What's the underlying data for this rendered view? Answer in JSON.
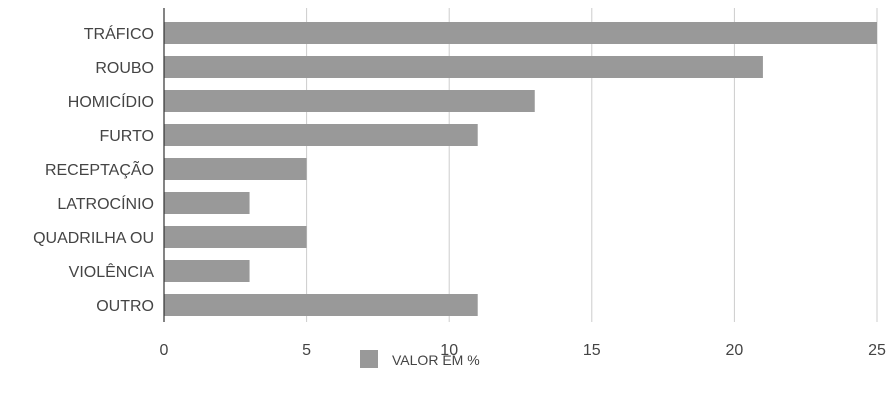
{
  "chart_data": {
    "type": "bar",
    "orientation": "horizontal",
    "categories": [
      "TRÁFICO",
      "ROUBO",
      "HOMICÍDIO",
      "FURTO",
      "RECEPTAÇÃO",
      "LATROCÍNIO",
      "QUADRILHA OU",
      "VIOLÊNCIA",
      "OUTRO"
    ],
    "series": [
      {
        "name": "VALOR EM %",
        "values": [
          25,
          21,
          13,
          11,
          5,
          3,
          5,
          3,
          11
        ]
      }
    ],
    "title": "",
    "xlabel": "",
    "ylabel": "",
    "xlim": [
      0,
      25
    ],
    "ticks": [
      "0",
      "5",
      "10",
      "15",
      "20",
      "25"
    ],
    "grid": true,
    "legend_position": "bottom",
    "colors": {
      "bar": "#999999",
      "grid": "#cccccc",
      "axis": "#333333"
    }
  }
}
